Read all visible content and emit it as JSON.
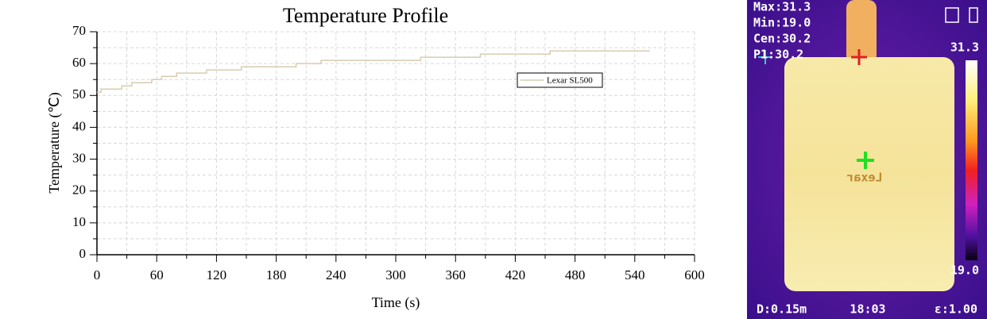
{
  "chart_data": {
    "type": "line",
    "title": "Temperature Profile",
    "x_label": "Time (s)",
    "y_label": "Temperature (℃)",
    "series": [
      {
        "name": "Lexar SL500",
        "color": "#d9ccb0",
        "x": [
          0,
          4,
          4,
          25,
          25,
          35,
          35,
          55,
          55,
          65,
          65,
          80,
          80,
          110,
          110,
          145,
          145,
          200,
          200,
          225,
          225,
          325,
          325,
          385,
          385,
          455,
          455,
          555
        ],
        "values": [
          51,
          51,
          52,
          52,
          53,
          53,
          54,
          54,
          55,
          55,
          56,
          56,
          57,
          57,
          58,
          58,
          59,
          59,
          60,
          60,
          61,
          61,
          62,
          62,
          63,
          63,
          64,
          64
        ]
      }
    ],
    "xlim": [
      0,
      600
    ],
    "xticks": [
      0,
      60,
      120,
      180,
      240,
      300,
      360,
      420,
      480,
      540,
      600
    ],
    "ylim": [
      0,
      70
    ],
    "yticks": [
      0,
      10,
      20,
      30,
      40,
      50,
      60,
      70
    ],
    "grid": true
  },
  "thermal_image": {
    "max": "Max:31.3",
    "min": "Min:19.0",
    "cen": "Cen:30.2",
    "p1": "P1:30.2",
    "scale_max": "31.3",
    "scale_min": "19.0",
    "distance": "D:0.15m",
    "time": "18:03",
    "emissivity": "ε:1.00",
    "device_label": "Lexar"
  }
}
